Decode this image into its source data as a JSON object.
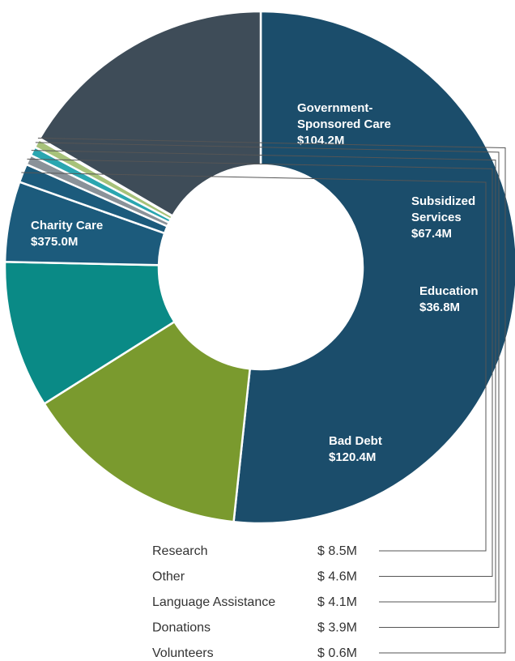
{
  "chart_data": {
    "type": "pie",
    "style": "donut",
    "slices": [
      {
        "label_lines": [
          "Charity Care",
          "$375.0M"
        ],
        "value": 375.0,
        "color": "#1b4d6b"
      },
      {
        "label_lines": [
          "Government-",
          "Sponsored Care",
          "$104.2M"
        ],
        "value": 104.2,
        "color": "#7a9a2e"
      },
      {
        "label_lines": [
          "Subsidized",
          "Services",
          "$67.4M"
        ],
        "value": 67.4,
        "color": "#0a8a86"
      },
      {
        "label_lines": [
          "Education",
          "$36.8M"
        ],
        "value": 36.8,
        "color": "#1c5b7c"
      },
      {
        "name": "Research",
        "value_text": "$ 8.5M",
        "value": 8.5,
        "color": "#1c5b7c"
      },
      {
        "name": "Other",
        "value_text": "$ 4.6M",
        "value": 4.6,
        "color": "#8a9299"
      },
      {
        "name": "Language Assistance",
        "value_text": "$ 4.1M",
        "value": 4.1,
        "color": "#2aa6b0"
      },
      {
        "name": "Donations",
        "value_text": "$ 3.9M",
        "value": 3.9,
        "color": "#a7c27a"
      },
      {
        "name": "Volunteers",
        "value_text": "$ 0.6M",
        "value": 0.6,
        "color": "#1c5b7c"
      },
      {
        "label_lines": [
          "Bad Debt",
          "$120.4M"
        ],
        "value": 120.4,
        "color": "#3e4c58"
      }
    ]
  }
}
